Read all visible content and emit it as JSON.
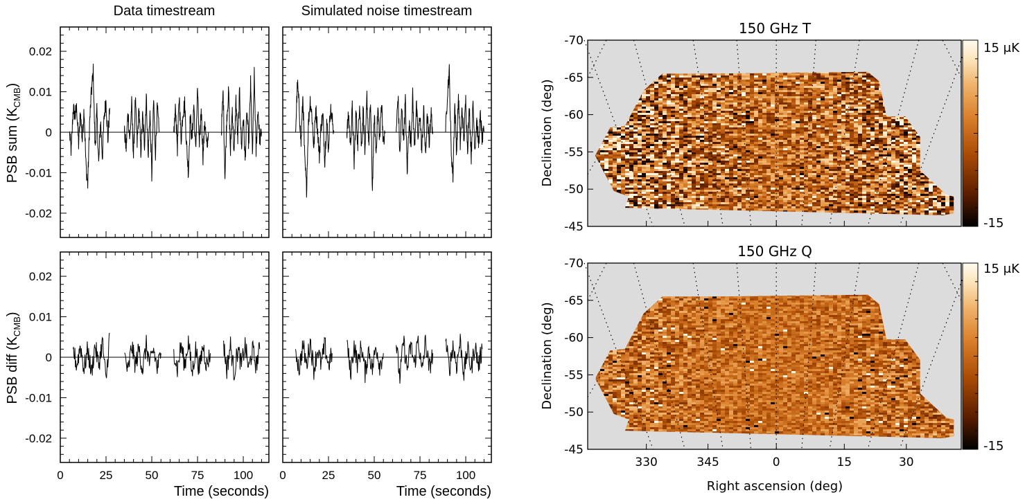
{
  "chart_data": [
    {
      "type": "line",
      "panel": "top-left",
      "title": "Data timestream",
      "ylabel": "PSB sum (K",
      "ylabel_sub": "CMB",
      "ylabel_close": ")",
      "xlim": [
        0,
        114
      ],
      "ylim": [
        -0.026,
        0.026
      ],
      "yticks": [
        0.02,
        0.01,
        0,
        -0.01,
        -0.02
      ],
      "yticklabels": [
        "0.02",
        "0.01",
        "0",
        "-0.01",
        "-0.02"
      ],
      "segments": [
        {
          "x": [
            5,
            6,
            7,
            8,
            9,
            10,
            11,
            12,
            13,
            14,
            15,
            16,
            17,
            18,
            19,
            20,
            21,
            22,
            23,
            24,
            25,
            26,
            27
          ],
          "y": [
            0,
            -0.005,
            0.006,
            0.004,
            0.006,
            -0.003,
            0.005,
            -0.002,
            0.006,
            -0.008,
            -0.013,
            0.002,
            0.01,
            0.015,
            -0.004,
            0.005,
            -0.008,
            0.003,
            -0.006,
            0.004,
            0.008,
            -0.002,
            0.006
          ]
        },
        {
          "x": [
            35,
            36,
            37,
            38,
            39,
            40,
            41,
            42,
            43,
            44,
            45,
            46,
            47,
            48,
            49,
            50,
            51,
            52,
            53,
            54
          ],
          "y": [
            0,
            -0.004,
            0.005,
            -0.002,
            0.007,
            -0.006,
            0.008,
            -0.003,
            0.006,
            -0.005,
            0.004,
            -0.003,
            0.009,
            -0.006,
            0.005,
            -0.011,
            0.008,
            -0.005,
            0.006,
            0
          ]
        },
        {
          "x": [
            62,
            63,
            64,
            65,
            66,
            67,
            68,
            69,
            70,
            71,
            72,
            73,
            74,
            75,
            76,
            77,
            78,
            79,
            80,
            81
          ],
          "y": [
            0,
            0.006,
            -0.004,
            0.009,
            -0.002,
            0.005,
            0.007,
            -0.003,
            -0.01,
            0.004,
            -0.002,
            0.007,
            -0.005,
            0.011,
            -0.004,
            0.006,
            -0.006,
            0.003,
            -0.004,
            0
          ]
        },
        {
          "x": [
            88,
            89,
            90,
            91,
            92,
            93,
            94,
            95,
            96,
            97,
            98,
            99,
            100,
            101,
            102,
            103,
            104,
            105,
            106,
            107,
            108,
            109,
            110
          ],
          "y": [
            0,
            0.01,
            -0.011,
            0.004,
            0.01,
            -0.005,
            0.006,
            -0.006,
            0.008,
            -0.002,
            0.01,
            -0.004,
            0.004,
            -0.007,
            0.005,
            -0.003,
            0.012,
            -0.006,
            0.014,
            -0.005,
            0.006,
            -0.002,
            0
          ]
        }
      ]
    },
    {
      "type": "line",
      "panel": "top-right",
      "title": "Simulated noise timestream",
      "xlim": [
        0,
        114
      ],
      "ylim": [
        -0.026,
        0.026
      ],
      "segments": [
        {
          "x": [
            7,
            8,
            9,
            10,
            11,
            12,
            13,
            14,
            15,
            16,
            17,
            18,
            19,
            20,
            21,
            22,
            23,
            24,
            25,
            26,
            27,
            28
          ],
          "y": [
            0,
            0.012,
            0.006,
            -0.003,
            0.009,
            -0.007,
            -0.014,
            0.002,
            0.008,
            0.004,
            -0.004,
            0.006,
            0.001,
            -0.006,
            0.002,
            0.004,
            -0.007,
            0.003,
            -0.004,
            0.006,
            0.003,
            0
          ]
        },
        {
          "x": [
            35,
            36,
            37,
            38,
            39,
            40,
            41,
            42,
            43,
            44,
            45,
            46,
            47,
            48,
            49,
            50,
            51,
            52,
            53,
            54,
            55,
            56
          ],
          "y": [
            0,
            0.004,
            -0.003,
            0.006,
            -0.008,
            0.005,
            -0.003,
            0.008,
            -0.004,
            0.006,
            -0.006,
            0.009,
            -0.003,
            0.007,
            -0.014,
            0.004,
            -0.005,
            0.006,
            -0.002,
            0.008,
            -0.003,
            0
          ]
        },
        {
          "x": [
            62,
            63,
            64,
            65,
            66,
            67,
            68,
            69,
            70,
            71,
            72,
            73,
            74,
            75,
            76,
            77,
            78,
            79,
            80,
            81,
            82
          ],
          "y": [
            0,
            0.009,
            -0.006,
            0.006,
            -0.002,
            0.008,
            -0.01,
            0.003,
            -0.003,
            0.009,
            -0.004,
            0.007,
            -0.002,
            0.005,
            -0.005,
            0.006,
            -0.006,
            0.004,
            -0.003,
            0.005,
            0
          ]
        },
        {
          "x": [
            89,
            90,
            91,
            92,
            93,
            94,
            95,
            96,
            97,
            98,
            99,
            100,
            101,
            102,
            103,
            104,
            105,
            106,
            107,
            108,
            109,
            110
          ],
          "y": [
            0,
            0.01,
            0.015,
            -0.004,
            -0.011,
            0.007,
            -0.005,
            0.009,
            -0.003,
            0.006,
            -0.002,
            0.008,
            -0.004,
            0.006,
            -0.006,
            0.007,
            -0.004,
            0.003,
            -0.003,
            0.004,
            -0.002,
            0
          ]
        }
      ]
    },
    {
      "type": "line",
      "panel": "bottom-left",
      "ylabel": "PSB diff (K",
      "ylabel_sub": "CMB",
      "ylabel_close": ")",
      "xlabel": "Time (seconds)",
      "xlim": [
        0,
        114
      ],
      "ylim": [
        -0.026,
        0.026
      ],
      "xticks": [
        0,
        25,
        50,
        75,
        100
      ],
      "xticklabels": [
        "0",
        "25",
        "50",
        "75",
        "100"
      ],
      "yticks": [
        0.02,
        0.01,
        0,
        -0.01,
        -0.02
      ],
      "yticklabels": [
        "0.02",
        "0.01",
        "0",
        "-0.01",
        "-0.02"
      ],
      "segments": [
        {
          "x": [
            7,
            9,
            11,
            13,
            15,
            17,
            19,
            21,
            23,
            25,
            27
          ],
          "y": [
            0.002,
            -0.002,
            0.003,
            -0.003,
            0.002,
            -0.004,
            0.003,
            -0.002,
            0.004,
            -0.006,
            0.006
          ]
        },
        {
          "x": [
            35,
            37,
            39,
            41,
            43,
            45,
            47,
            49,
            51,
            53,
            55
          ],
          "y": [
            0.001,
            -0.004,
            0.003,
            -0.002,
            0.002,
            -0.003,
            0.003,
            -0.002,
            0.002,
            -0.003,
            0.001
          ]
        },
        {
          "x": [
            62,
            64,
            66,
            68,
            70,
            72,
            74,
            76,
            78,
            80,
            82
          ],
          "y": [
            0.002,
            -0.003,
            0.003,
            -0.002,
            0.004,
            -0.004,
            0.002,
            -0.003,
            0.003,
            -0.002,
            0.001
          ]
        },
        {
          "x": [
            89,
            91,
            93,
            95,
            97,
            99,
            101,
            103,
            105,
            107,
            109
          ],
          "y": [
            0.004,
            -0.003,
            0.003,
            -0.004,
            0.002,
            -0.002,
            0.003,
            -0.003,
            0.002,
            -0.002,
            0.002
          ]
        }
      ]
    },
    {
      "type": "line",
      "panel": "bottom-right",
      "xlabel": "Time (seconds)",
      "xlim": [
        0,
        114
      ],
      "ylim": [
        -0.026,
        0.026
      ],
      "xticks": [
        0,
        25,
        50,
        75,
        100
      ],
      "xticklabels": [
        "0",
        "25",
        "50",
        "75",
        "100"
      ],
      "segments": [
        {
          "x": [
            7,
            9,
            11,
            13,
            15,
            17,
            19,
            21,
            23,
            25,
            27
          ],
          "y": [
            0.002,
            -0.003,
            0.003,
            -0.002,
            0.004,
            -0.003,
            0.002,
            -0.002,
            0.003,
            -0.002,
            0.001
          ]
        },
        {
          "x": [
            35,
            37,
            39,
            41,
            43,
            45,
            47,
            49,
            51,
            53,
            55
          ],
          "y": [
            0.004,
            -0.004,
            0.003,
            -0.002,
            0.003,
            -0.004,
            0.002,
            -0.003,
            0.003,
            -0.002,
            0.001
          ]
        },
        {
          "x": [
            62,
            64,
            66,
            68,
            70,
            72,
            74,
            76,
            78,
            80,
            82
          ],
          "y": [
            0.003,
            -0.005,
            0.004,
            -0.003,
            0.003,
            -0.002,
            0.005,
            -0.004,
            0.004,
            -0.003,
            0.001
          ]
        },
        {
          "x": [
            89,
            91,
            93,
            95,
            97,
            99,
            101,
            103,
            105,
            107,
            109
          ],
          "y": [
            0.004,
            -0.003,
            0.003,
            -0.002,
            0.004,
            -0.004,
            0.002,
            -0.003,
            0.003,
            -0.002,
            0.002
          ]
        }
      ]
    },
    {
      "type": "heatmap",
      "panel": "map-T",
      "title": "150 GHz T",
      "ylabel": "Declination (deg)",
      "yticks": [
        -70,
        -65,
        -60,
        -55,
        -50,
        -45
      ],
      "yticklabels": [
        "-70",
        "-65",
        "-60",
        "-55",
        "-50",
        "-45"
      ],
      "colorbar": {
        "max_label": "15 μK",
        "min_label": "-15",
        "range": [
          -15,
          15
        ]
      },
      "noise_level": 1.0
    },
    {
      "type": "heatmap",
      "panel": "map-Q",
      "title": "150 GHz Q",
      "ylabel": "Declination (deg)",
      "xlabel": "Right ascension (deg)",
      "xticks": [
        330,
        345,
        0,
        15,
        30
      ],
      "xticklabels": [
        "330",
        "345",
        "0",
        "15",
        "30"
      ],
      "yticks": [
        -70,
        -65,
        -60,
        -55,
        -50,
        -45
      ],
      "yticklabels": [
        "-70",
        "-65",
        "-60",
        "-55",
        "-50",
        "-45"
      ],
      "colorbar": {
        "max_label": "15 μK",
        "min_label": "-15",
        "range": [
          -15,
          15
        ]
      },
      "noise_level": 0.55
    }
  ],
  "colors": {
    "line": "#000000",
    "map_background": "#dcdcdc",
    "colormap": [
      "#000000",
      "#5a1d00",
      "#a84a05",
      "#d97e2a",
      "#f0b36b",
      "#fde5bd",
      "#fffaf0"
    ]
  }
}
